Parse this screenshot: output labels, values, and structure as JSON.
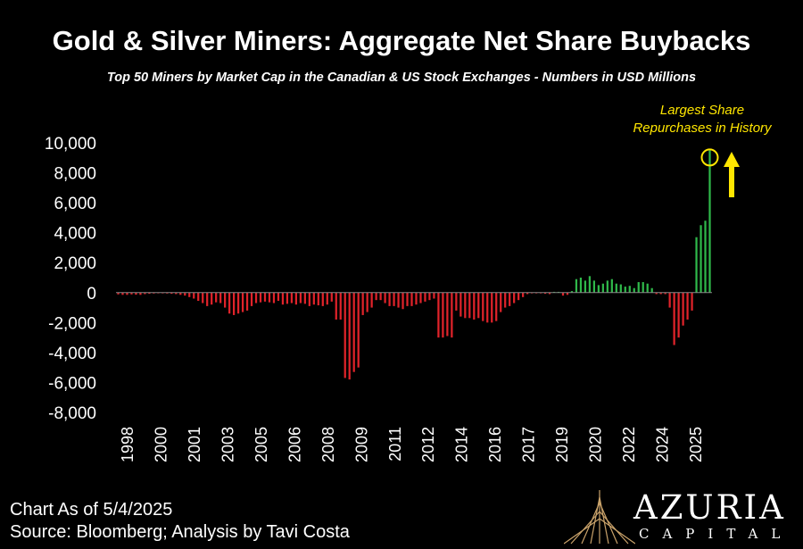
{
  "chart_data": {
    "type": "bar",
    "title": "Gold & Silver Miners: Aggregate Net Share Buybacks",
    "subtitle": "Top 50 Miners by Market Cap in the Canadian & US Stock Exchanges - Numbers in USD Millions",
    "annotation": "Largest Share\nRepurchases in History",
    "ylim": [
      -8000,
      10000
    ],
    "yticks": [
      "10,000",
      "8,000",
      "6,000",
      "4,000",
      "2,000",
      "0",
      "-2,000",
      "-4,000",
      "-6,000",
      "-8,000"
    ],
    "xticks": [
      "1998",
      "2000",
      "2001",
      "2003",
      "2005",
      "2006",
      "2008",
      "2009",
      "2011",
      "2012",
      "2014",
      "2016",
      "2017",
      "2019",
      "2020",
      "2022",
      "2024",
      "2025"
    ],
    "positive_color": "#2fb84a",
    "negative_color": "#e0232a",
    "annotation_color": "#ffe600",
    "values": [
      -120,
      -150,
      -150,
      -120,
      -140,
      -150,
      -100,
      -80,
      -60,
      -40,
      -50,
      -60,
      -80,
      -100,
      -150,
      -200,
      -300,
      -400,
      -550,
      -700,
      -900,
      -800,
      -650,
      -700,
      -1000,
      -1400,
      -1500,
      -1400,
      -1300,
      -1200,
      -900,
      -700,
      -650,
      -600,
      -650,
      -700,
      -550,
      -800,
      -750,
      -700,
      -800,
      -700,
      -750,
      -900,
      -800,
      -850,
      -900,
      -800,
      -600,
      -1800,
      -1800,
      -5700,
      -5800,
      -5300,
      -5000,
      -1500,
      -1300,
      -1000,
      -500,
      -500,
      -700,
      -900,
      -900,
      -1000,
      -1100,
      -900,
      -900,
      -800,
      -700,
      -600,
      -500,
      -400,
      -3000,
      -3000,
      -2900,
      -3000,
      -1200,
      -1600,
      -1700,
      -1700,
      -1800,
      -1700,
      -1900,
      -2000,
      -2000,
      -1900,
      -1300,
      -1000,
      -900,
      -700,
      -500,
      -300,
      -100,
      -50,
      -50,
      -50,
      -80,
      -100,
      50,
      50,
      -200,
      -150,
      100,
      900,
      1000,
      800,
      1100,
      800,
      500,
      600,
      800,
      900,
      600,
      550,
      400,
      450,
      300,
      700,
      700,
      600,
      300,
      -100,
      -100,
      -100,
      -1000,
      -3500,
      -3000,
      -2200,
      -1800,
      -1200,
      3700,
      4500,
      4800,
      9500
    ]
  },
  "footer": {
    "line1": "Chart As of 5/4/2025",
    "line2": "Source: Bloomberg; Analysis by Tavi Costa"
  },
  "logo": {
    "name": "AZURIA",
    "sub": "CAPITAL"
  }
}
